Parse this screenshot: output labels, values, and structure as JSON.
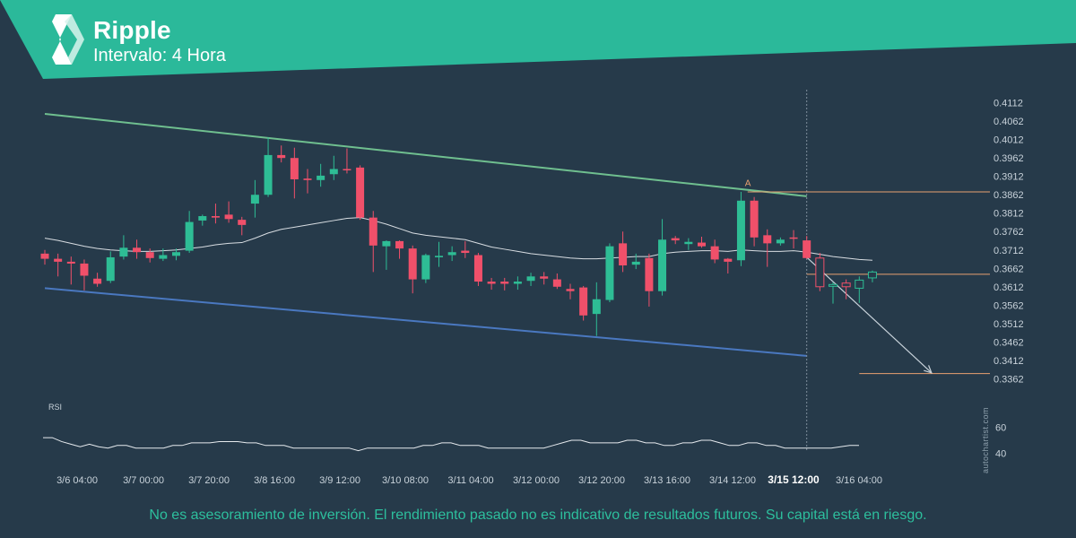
{
  "header": {
    "title": "Ripple",
    "interval": "Intervalo: 4 Hora",
    "banner_color": "#2bb99a"
  },
  "footer": {
    "disclaimer": "No es asesoramiento de inversión. El rendimiento pasado no es indicativo de resultados futuros. Su capital está en riesgo.",
    "watermark": "autochartist.com"
  },
  "chart_data": {
    "type": "candlestick",
    "y_ticks": [
      "0.4112",
      "0.4062",
      "0.4012",
      "0.3962",
      "0.3912",
      "0.3862",
      "0.3812",
      "0.3762",
      "0.3712",
      "0.3662",
      "0.3612",
      "0.3562",
      "0.3512",
      "0.3462",
      "0.3412",
      "0.3362"
    ],
    "ylim": [
      0.3336,
      0.4138
    ],
    "x_ticks": [
      "3/6 04:00",
      "3/7 00:00",
      "3/7 20:00",
      "3/8 16:00",
      "3/9 12:00",
      "3/10 08:00",
      "3/11 04:00",
      "3/12 00:00",
      "3/12 20:00",
      "3/13 16:00",
      "3/14 12:00",
      "3/15 12:00",
      "3/16 04:00"
    ],
    "highlight_x_tick": "3/15 12:00",
    "up_color": "#2ebd95",
    "down_color": "#f0506a",
    "candles": [
      {
        "o": 0.3702,
        "h": 0.3712,
        "l": 0.3672,
        "c": 0.3688
      },
      {
        "o": 0.3688,
        "h": 0.3702,
        "l": 0.364,
        "c": 0.368
      },
      {
        "o": 0.368,
        "h": 0.3694,
        "l": 0.3618,
        "c": 0.3675
      },
      {
        "o": 0.3675,
        "h": 0.3686,
        "l": 0.3602,
        "c": 0.3642
      },
      {
        "o": 0.3634,
        "h": 0.365,
        "l": 0.3612,
        "c": 0.362
      },
      {
        "o": 0.3628,
        "h": 0.3708,
        "l": 0.3622,
        "c": 0.3692
      },
      {
        "o": 0.3694,
        "h": 0.3752,
        "l": 0.3686,
        "c": 0.3718
      },
      {
        "o": 0.3718,
        "h": 0.374,
        "l": 0.3688,
        "c": 0.3706
      },
      {
        "o": 0.3706,
        "h": 0.3716,
        "l": 0.3678,
        "c": 0.369
      },
      {
        "o": 0.3688,
        "h": 0.3716,
        "l": 0.3682,
        "c": 0.3698
      },
      {
        "o": 0.3696,
        "h": 0.3716,
        "l": 0.3684,
        "c": 0.3706
      },
      {
        "o": 0.371,
        "h": 0.3818,
        "l": 0.3704,
        "c": 0.3788
      },
      {
        "o": 0.3792,
        "h": 0.3808,
        "l": 0.3778,
        "c": 0.3804
      },
      {
        "o": 0.3804,
        "h": 0.3838,
        "l": 0.3784,
        "c": 0.38
      },
      {
        "o": 0.3808,
        "h": 0.3844,
        "l": 0.3786,
        "c": 0.3796
      },
      {
        "o": 0.3794,
        "h": 0.3802,
        "l": 0.3752,
        "c": 0.378
      },
      {
        "o": 0.3838,
        "h": 0.3902,
        "l": 0.38,
        "c": 0.3862
      },
      {
        "o": 0.3862,
        "h": 0.4018,
        "l": 0.3856,
        "c": 0.397
      },
      {
        "o": 0.397,
        "h": 0.3996,
        "l": 0.395,
        "c": 0.3962
      },
      {
        "o": 0.3962,
        "h": 0.399,
        "l": 0.3852,
        "c": 0.3904
      },
      {
        "o": 0.3906,
        "h": 0.3932,
        "l": 0.3866,
        "c": 0.3902
      },
      {
        "o": 0.3902,
        "h": 0.3946,
        "l": 0.3884,
        "c": 0.3914
      },
      {
        "o": 0.3918,
        "h": 0.3968,
        "l": 0.3902,
        "c": 0.3932
      },
      {
        "o": 0.3932,
        "h": 0.3988,
        "l": 0.392,
        "c": 0.393
      },
      {
        "o": 0.3936,
        "h": 0.3942,
        "l": 0.3794,
        "c": 0.38
      },
      {
        "o": 0.38,
        "h": 0.3818,
        "l": 0.3652,
        "c": 0.3724
      },
      {
        "o": 0.3722,
        "h": 0.3738,
        "l": 0.3658,
        "c": 0.3736
      },
      {
        "o": 0.3736,
        "h": 0.3738,
        "l": 0.3688,
        "c": 0.3716
      },
      {
        "o": 0.3716,
        "h": 0.3724,
        "l": 0.3594,
        "c": 0.3632
      },
      {
        "o": 0.3632,
        "h": 0.3702,
        "l": 0.3622,
        "c": 0.3698
      },
      {
        "o": 0.3692,
        "h": 0.3734,
        "l": 0.3666,
        "c": 0.3696
      },
      {
        "o": 0.3698,
        "h": 0.3722,
        "l": 0.3682,
        "c": 0.3706
      },
      {
        "o": 0.371,
        "h": 0.3736,
        "l": 0.369,
        "c": 0.3704
      },
      {
        "o": 0.3698,
        "h": 0.3704,
        "l": 0.3614,
        "c": 0.3626
      },
      {
        "o": 0.3626,
        "h": 0.3636,
        "l": 0.3604,
        "c": 0.362
      },
      {
        "o": 0.3626,
        "h": 0.3636,
        "l": 0.3602,
        "c": 0.362
      },
      {
        "o": 0.362,
        "h": 0.364,
        "l": 0.3604,
        "c": 0.3626
      },
      {
        "o": 0.3628,
        "h": 0.365,
        "l": 0.3614,
        "c": 0.364
      },
      {
        "o": 0.364,
        "h": 0.3652,
        "l": 0.3618,
        "c": 0.3634
      },
      {
        "o": 0.3632,
        "h": 0.3648,
        "l": 0.3606,
        "c": 0.3612
      },
      {
        "o": 0.3606,
        "h": 0.362,
        "l": 0.3578,
        "c": 0.36
      },
      {
        "o": 0.361,
        "h": 0.3614,
        "l": 0.352,
        "c": 0.3534
      },
      {
        "o": 0.3538,
        "h": 0.3624,
        "l": 0.3478,
        "c": 0.3578
      },
      {
        "o": 0.3576,
        "h": 0.373,
        "l": 0.357,
        "c": 0.3722
      },
      {
        "o": 0.373,
        "h": 0.3762,
        "l": 0.3652,
        "c": 0.367
      },
      {
        "o": 0.3672,
        "h": 0.3702,
        "l": 0.366,
        "c": 0.368
      },
      {
        "o": 0.369,
        "h": 0.3702,
        "l": 0.3558,
        "c": 0.36
      },
      {
        "o": 0.36,
        "h": 0.3796,
        "l": 0.3588,
        "c": 0.374
      },
      {
        "o": 0.3744,
        "h": 0.375,
        "l": 0.3728,
        "c": 0.3738
      },
      {
        "o": 0.3728,
        "h": 0.3744,
        "l": 0.3712,
        "c": 0.3734
      },
      {
        "o": 0.3732,
        "h": 0.3748,
        "l": 0.3718,
        "c": 0.3722
      },
      {
        "o": 0.3722,
        "h": 0.374,
        "l": 0.3676,
        "c": 0.3686
      },
      {
        "o": 0.3688,
        "h": 0.369,
        "l": 0.3648,
        "c": 0.368
      },
      {
        "o": 0.3684,
        "h": 0.387,
        "l": 0.3668,
        "c": 0.3846
      },
      {
        "o": 0.3846,
        "h": 0.3856,
        "l": 0.3722,
        "c": 0.3746
      },
      {
        "o": 0.3752,
        "h": 0.3768,
        "l": 0.3666,
        "c": 0.373
      },
      {
        "o": 0.373,
        "h": 0.3746,
        "l": 0.3724,
        "c": 0.374
      },
      {
        "o": 0.3746,
        "h": 0.3766,
        "l": 0.3716,
        "c": 0.3744
      },
      {
        "o": 0.3738,
        "h": 0.375,
        "l": 0.3688,
        "c": 0.369
      }
    ],
    "forecast_candles": [
      {
        "o": 0.369,
        "h": 0.3704,
        "l": 0.36,
        "c": 0.3612,
        "dir": "down"
      },
      {
        "o": 0.3614,
        "h": 0.3624,
        "l": 0.3566,
        "c": 0.3618,
        "dir": "up"
      },
      {
        "o": 0.3622,
        "h": 0.3632,
        "l": 0.3578,
        "c": 0.3612,
        "dir": "down"
      },
      {
        "o": 0.3608,
        "h": 0.364,
        "l": 0.3568,
        "c": 0.363,
        "dir": "up"
      },
      {
        "o": 0.3636,
        "h": 0.3656,
        "l": 0.3624,
        "c": 0.3652,
        "dir": "up"
      }
    ],
    "moving_average": [
      0.3744,
      0.3738,
      0.373,
      0.3722,
      0.3716,
      0.3712,
      0.371,
      0.3708,
      0.3708,
      0.371,
      0.3712,
      0.3716,
      0.372,
      0.3726,
      0.373,
      0.3732,
      0.3744,
      0.3758,
      0.3768,
      0.3774,
      0.378,
      0.3786,
      0.3792,
      0.3798,
      0.38,
      0.3792,
      0.3782,
      0.377,
      0.3758,
      0.3752,
      0.3748,
      0.3744,
      0.374,
      0.373,
      0.372,
      0.3714,
      0.3708,
      0.3702,
      0.3698,
      0.3694,
      0.369,
      0.3688,
      0.3688,
      0.369,
      0.3692,
      0.3694,
      0.3694,
      0.3702,
      0.3706,
      0.3708,
      0.371,
      0.371,
      0.3708,
      0.3712,
      0.371,
      0.3708,
      0.3708,
      0.371,
      0.3706,
      0.37,
      0.3694,
      0.369,
      0.3686,
      0.3684
    ],
    "pattern": {
      "upper_line": {
        "from": [
          0,
          0.4082
        ],
        "to": [
          58,
          0.3858
        ]
      },
      "lower_line": {
        "from": [
          0,
          0.3608
        ],
        "to": [
          58,
          0.3424
        ]
      },
      "resistance_level": 0.387,
      "support_level": 0.3646,
      "target_level": 0.3376,
      "arrow": {
        "from": [
          58,
          0.3692
        ],
        "to": [
          67.5,
          0.3378
        ]
      },
      "label": "A",
      "label_at": [
        53.5,
        0.3886
      ]
    },
    "rsi": {
      "label": "RSI",
      "ticks": [
        "60",
        "40"
      ],
      "ylim": [
        30,
        70
      ],
      "values": [
        52,
        52,
        49,
        47,
        45,
        47,
        45,
        44,
        46,
        46,
        44,
        44,
        44,
        44,
        46,
        46,
        48,
        48,
        48,
        49,
        49,
        49,
        48,
        48,
        46,
        46,
        46,
        44,
        44,
        44,
        44,
        44,
        44,
        44,
        42,
        44,
        44,
        44,
        44,
        44,
        44,
        46,
        46,
        48,
        48,
        46,
        46,
        46,
        44,
        44,
        44,
        44,
        44,
        44,
        44,
        46,
        48,
        50,
        50,
        48,
        48,
        48,
        48,
        50,
        50,
        48,
        48,
        46,
        46,
        48,
        48,
        50,
        50,
        48,
        46,
        46,
        48,
        48,
        46,
        46,
        44,
        44,
        44,
        44,
        44,
        44,
        45,
        46,
        46
      ]
    }
  }
}
